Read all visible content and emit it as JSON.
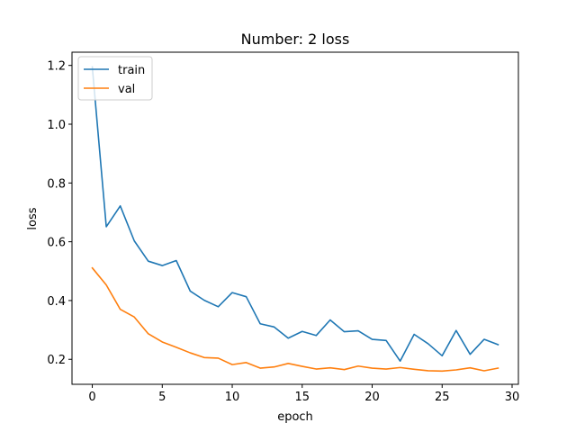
{
  "chart_data": {
    "type": "line",
    "title": "Number: 2 loss",
    "xlabel": "epoch",
    "ylabel": "loss",
    "xlim": [
      -1.45,
      30.45
    ],
    "ylim": [
      0.115,
      1.245
    ],
    "xticks": [
      0,
      5,
      10,
      15,
      20,
      25,
      30
    ],
    "yticks": [
      0.2,
      0.4,
      0.6,
      0.8,
      1.0,
      1.2
    ],
    "ytick_labels": [
      "0.2",
      "0.4",
      "0.6",
      "0.8",
      "1.0",
      "1.2"
    ],
    "grid": false,
    "legend_position": "top-left",
    "x": [
      0,
      1,
      2,
      3,
      4,
      5,
      6,
      7,
      8,
      9,
      10,
      11,
      12,
      13,
      14,
      15,
      16,
      17,
      18,
      19,
      20,
      21,
      22,
      23,
      24,
      25,
      26,
      27,
      28,
      29
    ],
    "series": [
      {
        "name": "train",
        "color": "#1f77b4",
        "values": [
          1.195,
          0.651,
          0.722,
          0.603,
          0.534,
          0.519,
          0.536,
          0.432,
          0.401,
          0.379,
          0.427,
          0.413,
          0.321,
          0.31,
          0.272,
          0.295,
          0.281,
          0.334,
          0.294,
          0.297,
          0.268,
          0.264,
          0.194,
          0.285,
          0.253,
          0.212,
          0.298,
          0.217,
          0.268,
          0.25
        ]
      },
      {
        "name": "val",
        "color": "#ff7f0e",
        "values": [
          0.511,
          0.453,
          0.37,
          0.344,
          0.287,
          0.259,
          0.241,
          0.222,
          0.206,
          0.204,
          0.182,
          0.189,
          0.17,
          0.174,
          0.186,
          0.176,
          0.167,
          0.171,
          0.165,
          0.177,
          0.17,
          0.167,
          0.172,
          0.166,
          0.161,
          0.16,
          0.164,
          0.171,
          0.161,
          0.17
        ]
      }
    ]
  }
}
